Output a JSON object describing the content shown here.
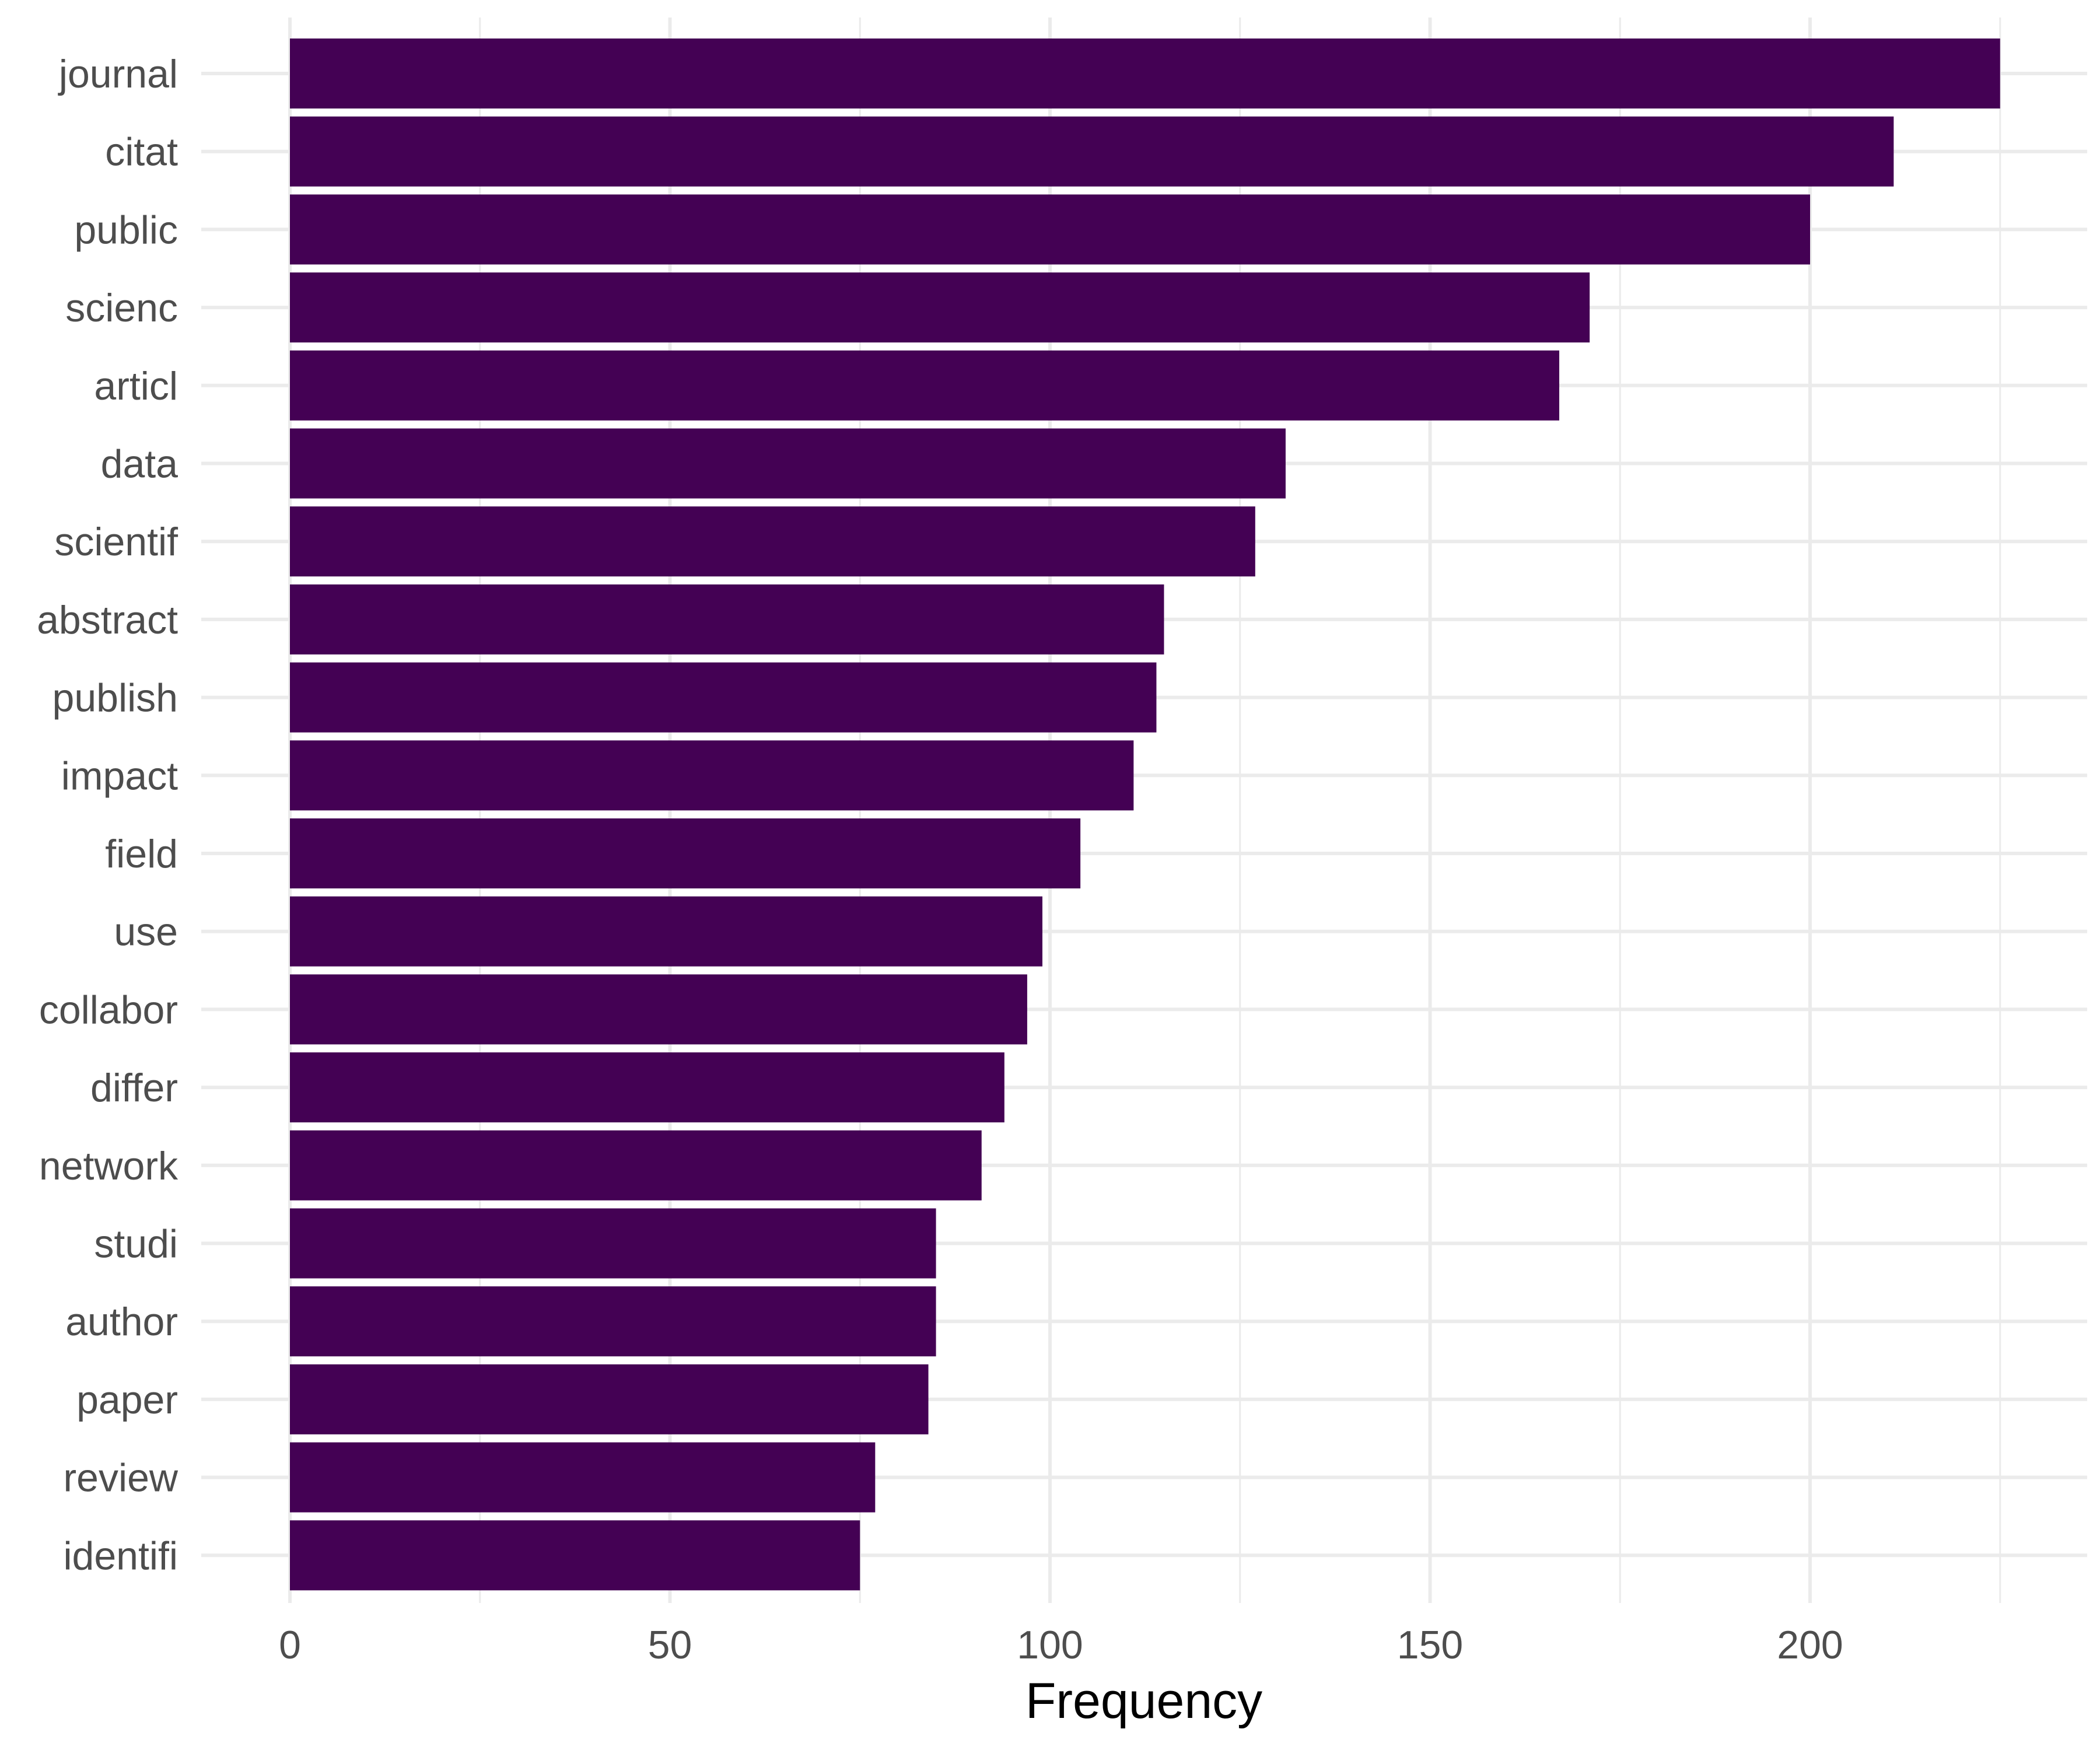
{
  "chart_data": {
    "type": "bar",
    "orientation": "horizontal",
    "categories": [
      "journal",
      "citat",
      "public",
      "scienc",
      "articl",
      "data",
      "scientif",
      "abstract",
      "publish",
      "impact",
      "field",
      "use",
      "collabor",
      "differ",
      "network",
      "studi",
      "author",
      "paper",
      "review",
      "identifi"
    ],
    "values": [
      225,
      211,
      200,
      171,
      167,
      131,
      127,
      115,
      114,
      111,
      104,
      99,
      97,
      94,
      91,
      85,
      85,
      84,
      77,
      75
    ],
    "title": "",
    "xlabel": "Frequency",
    "ylabel": "",
    "xlim": [
      0,
      235
    ],
    "x_ticks": [
      "0",
      "50",
      "100",
      "150",
      "200"
    ],
    "x_tick_values": [
      0,
      50,
      100,
      150,
      200
    ],
    "x_minor_tick_values": [
      25,
      75,
      125,
      175,
      225
    ],
    "bar_color": "#440154",
    "grid_color": "#ebebeb",
    "grid": true,
    "legend": "none"
  }
}
